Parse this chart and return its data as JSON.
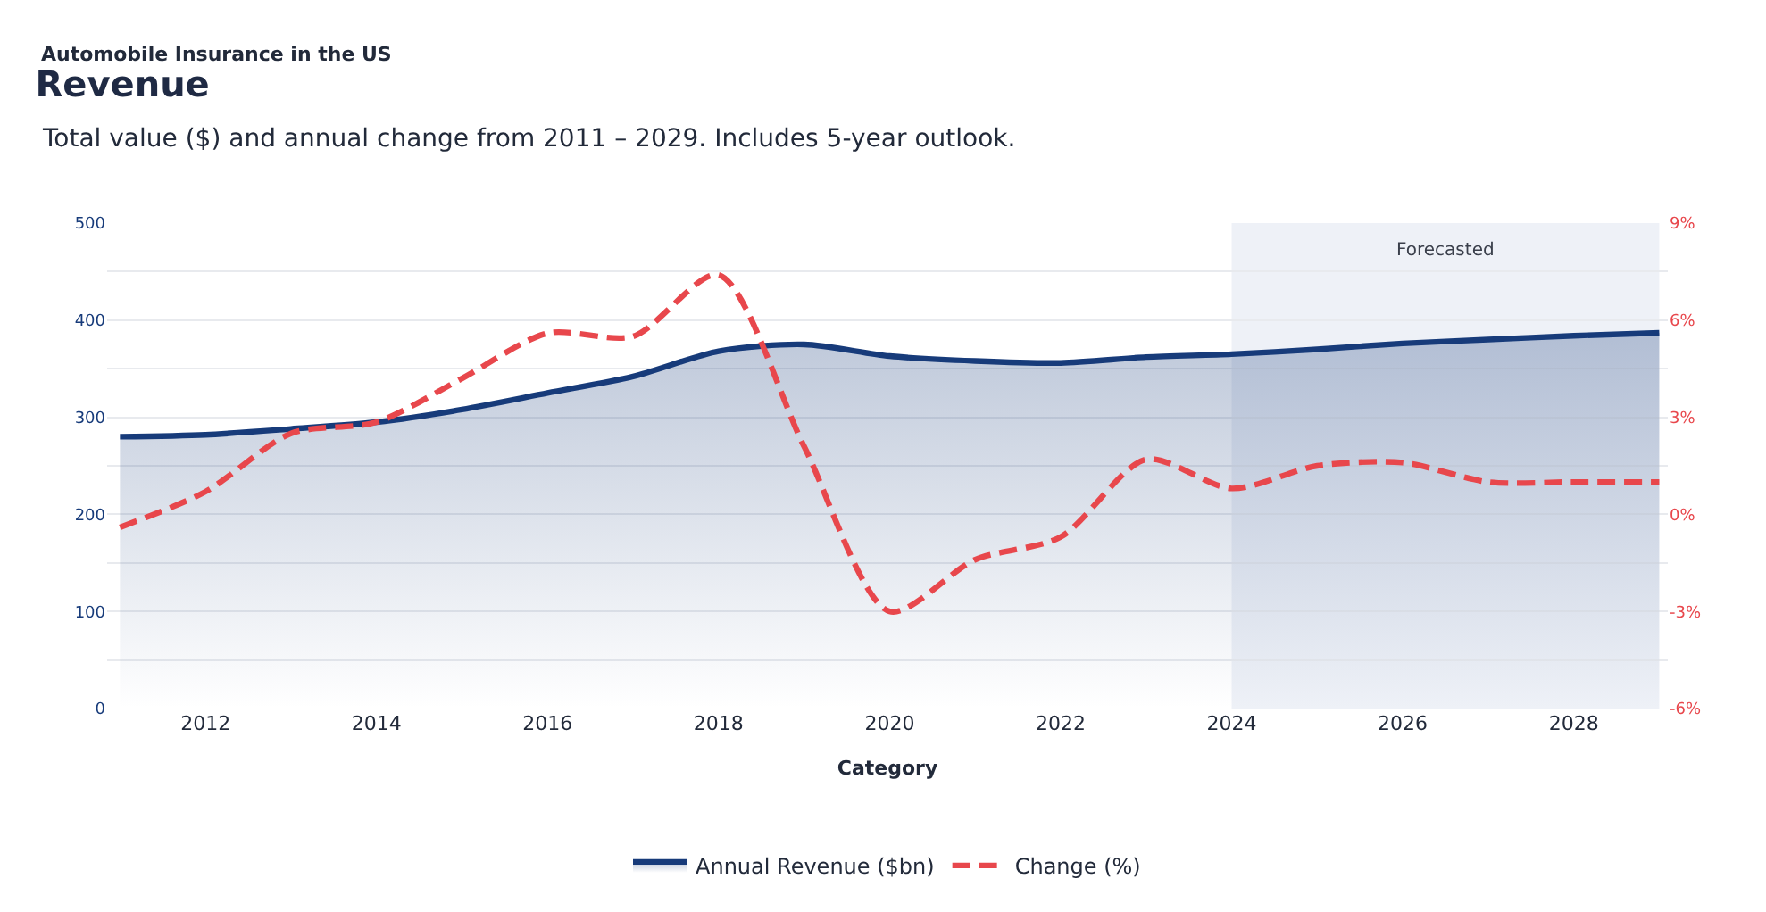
{
  "chart_data": {
    "type": "area",
    "title": "Revenue",
    "subtitle": "Total value ($) and annual change from 2011 – 2029. Includes 5-year outlook.",
    "xlabel": "Category",
    "annotations": [
      "Automobile Insurance in the US"
    ],
    "x": [
      2011,
      2012,
      2013,
      2014,
      2015,
      2016,
      2017,
      2018,
      2019,
      2020,
      2021,
      2022,
      2023,
      2024,
      2025,
      2026,
      2027,
      2028,
      2029
    ],
    "series": [
      {
        "name": "Annual Revenue ($bn)",
        "color": "#173b7a",
        "line_style": "solid",
        "values": [
          280,
          282,
          288,
          295,
          308,
          325,
          342,
          368,
          375,
          363,
          358,
          356,
          362,
          365,
          370,
          376,
          380,
          384,
          387
        ]
      },
      {
        "name": "Change (%)",
        "type": "line",
        "axis": "y2",
        "color": "#e8474c",
        "line_style": "dashed",
        "values": [
          -0.4,
          0.7,
          2.5,
          2.85,
          4.2,
          5.6,
          5.5,
          7.4,
          2.1,
          -3.0,
          -1.4,
          -0.7,
          1.7,
          0.8,
          1.5,
          1.6,
          1.0,
          1.0,
          1.0
        ]
      }
    ],
    "xlim": [
      2010.85,
      2029.1
    ],
    "xticks": [
      2012,
      2014,
      2016,
      2018,
      2020,
      2022,
      2024,
      2026,
      2028
    ],
    "ylim": [
      0,
      500
    ],
    "yticks": [
      0,
      {
        "value": 50,
        "label": null
      },
      100,
      {
        "value": 150,
        "label": null
      },
      200,
      {
        "value": 250,
        "label": null
      },
      300,
      {
        "value": 350,
        "label": null
      },
      400,
      {
        "value": 450,
        "label": null
      },
      500
    ],
    "y2lim": [
      -6,
      9
    ],
    "y2ticks": [
      {
        "value": -6,
        "label": "-6%"
      },
      {
        "value": -3,
        "label": "-3%"
      },
      {
        "value": 0,
        "label": "0%"
      },
      {
        "value": 3,
        "label": "3%"
      },
      {
        "value": 6,
        "label": "6%"
      },
      {
        "value": 9,
        "label": "9%"
      }
    ],
    "bands": [
      {
        "axis": "x",
        "from": 2024,
        "to": 2029,
        "label": "Forecasted",
        "color": "#eef1f7"
      }
    ],
    "grid": "y",
    "legend": "bottom",
    "marker": "none"
  }
}
